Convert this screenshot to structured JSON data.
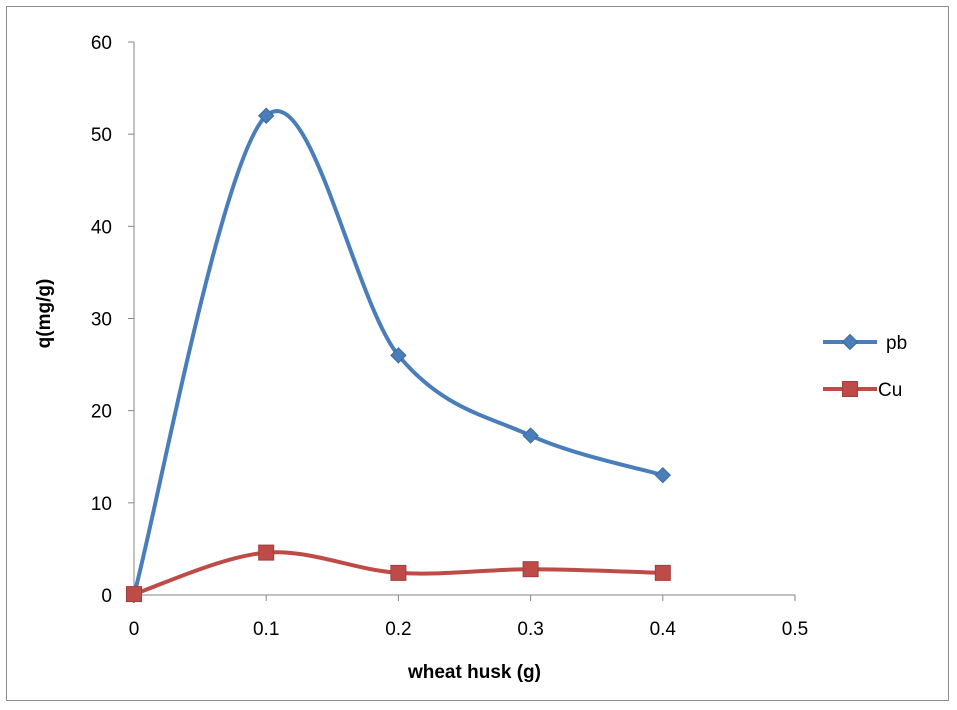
{
  "chart_data": {
    "type": "scatter",
    "subtype": "smooth-line-with-markers",
    "title": "",
    "xlabel": "wheat husk (g)",
    "ylabel": "q(mg/g)",
    "xlim": [
      0,
      0.5
    ],
    "ylim": [
      0,
      60
    ],
    "x_ticks": [
      0,
      0.1,
      0.2,
      0.3,
      0.4,
      0.5
    ],
    "x_tick_labels": [
      "0",
      "0.1",
      "0.2",
      "0.3",
      "0.4",
      "0.5"
    ],
    "y_ticks": [
      0,
      10,
      20,
      30,
      40,
      50,
      60
    ],
    "y_tick_labels": [
      "0",
      "10",
      "20",
      "30",
      "40",
      "50",
      "60"
    ],
    "grid": false,
    "legend_position": "right",
    "series": [
      {
        "name": "pb",
        "color": "#4a7ebb",
        "marker": "diamond",
        "x": [
          0,
          0.1,
          0.2,
          0.3,
          0.4
        ],
        "y": [
          0,
          52,
          26,
          17.3,
          13
        ]
      },
      {
        "name": "Cu",
        "color": "#be4b48",
        "marker": "square",
        "x": [
          0,
          0.1,
          0.2,
          0.3,
          0.4
        ],
        "y": [
          0.1,
          4.6,
          2.4,
          2.8,
          2.4
        ]
      }
    ]
  }
}
